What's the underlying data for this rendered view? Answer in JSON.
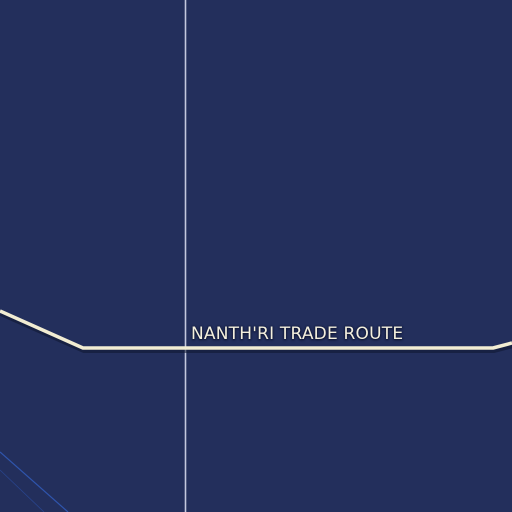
{
  "map": {
    "background_color": "#232f5c",
    "grid_line_color": "#c3c8de",
    "route_color": "#f2edd3",
    "minor_line_color": "#2f55ad"
  },
  "routes": [
    {
      "label": "NANTH'RI TRADE ROUTE"
    }
  ]
}
